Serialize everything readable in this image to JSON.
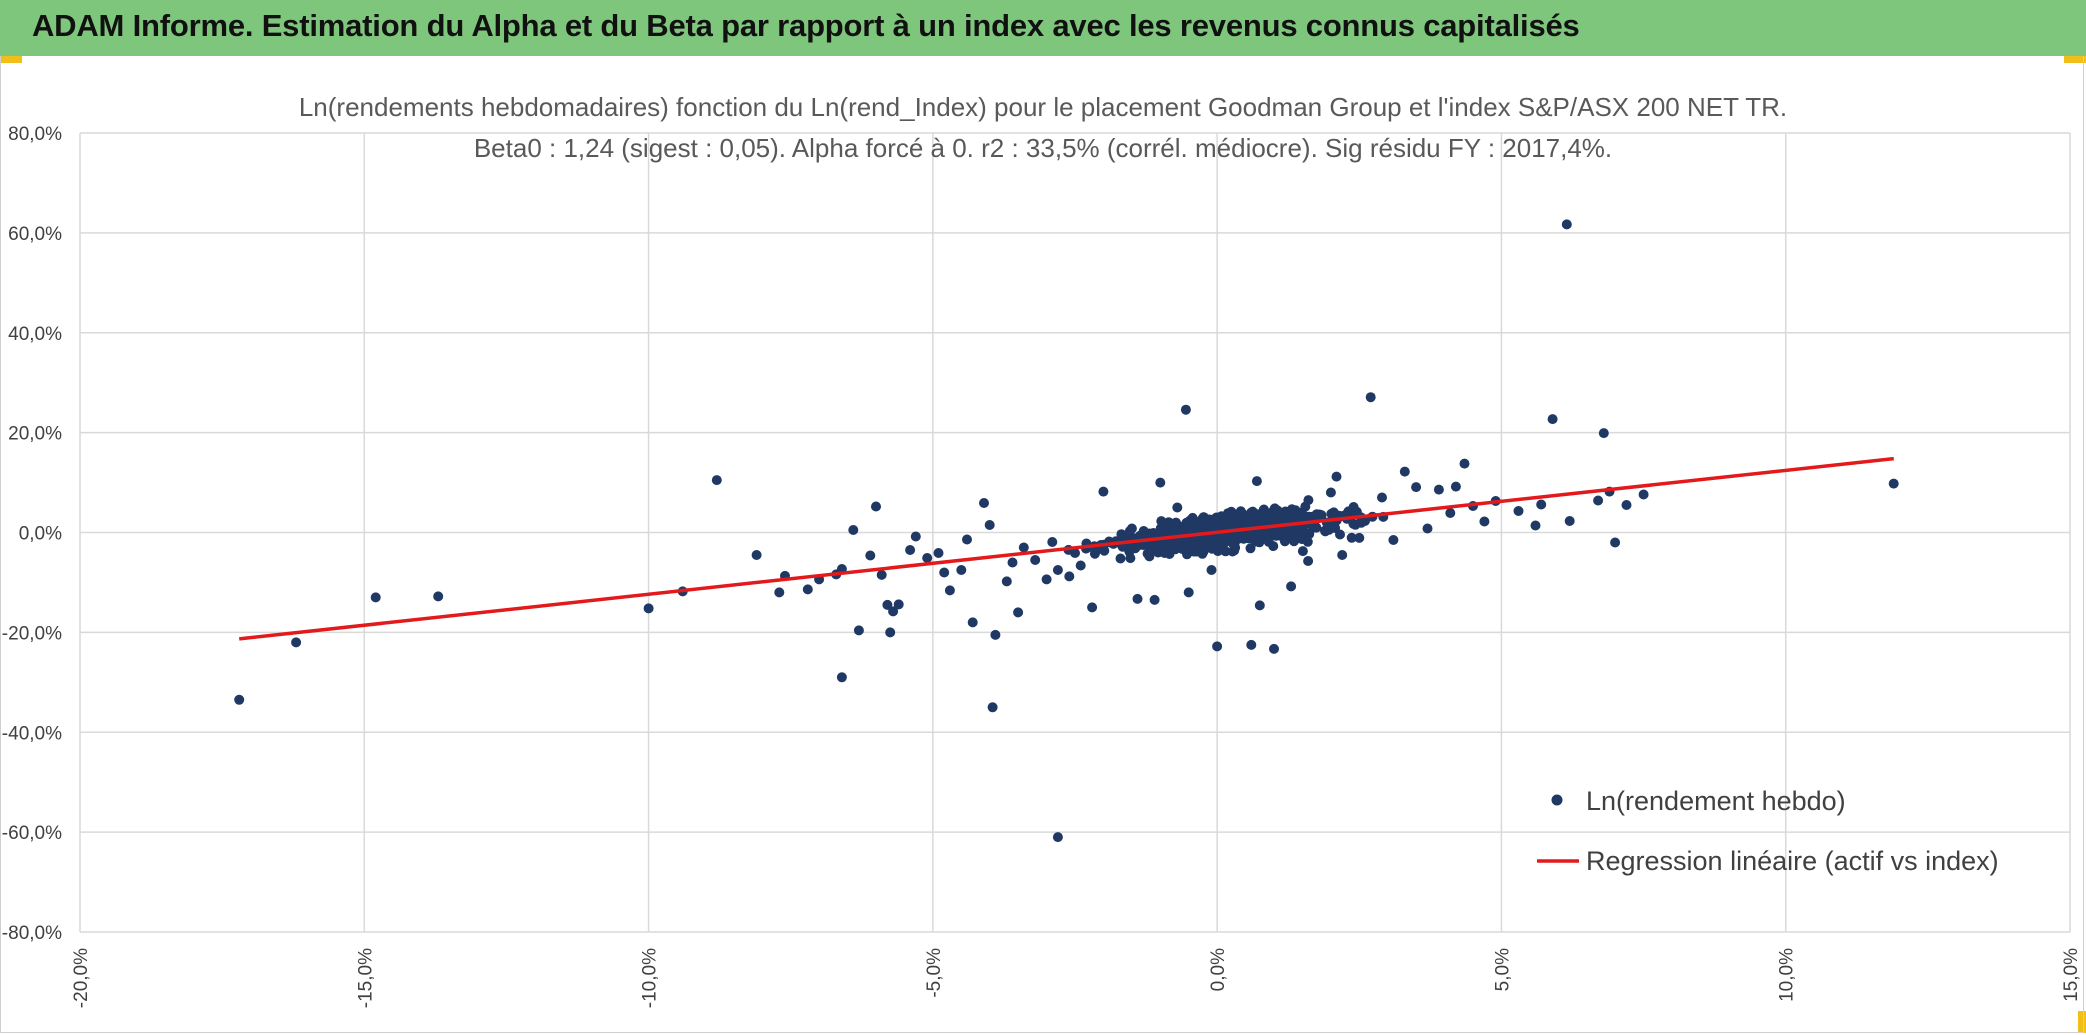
{
  "header": {
    "title": "ADAM Informe. Estimation du Alpha et du Beta par rapport à un index avec les revenus connus capitalisés"
  },
  "colors": {
    "banner": "#7dc67b",
    "accent": "#f2bf1a",
    "points": "#203864",
    "regression": "#e31a1c",
    "grid": "#d9d9d9"
  },
  "chart_data": {
    "type": "scatter",
    "title": "Ln(rendements hebdomadaires) fonction du Ln(rend_Index) pour le placement Goodman Group et l'index S&P/ASX 200 NET TR.",
    "subtitle": "Beta0 : 1,24 (sigest : 0,05). Alpha forcé à 0. r2 : 33,5% (corrél. médiocre). Sig résidu FY : 2017,4%.",
    "xlabel": "",
    "ylabel": "",
    "xlim": [
      -20,
      15
    ],
    "ylim": [
      -80,
      80
    ],
    "x_ticks": [
      "-20,0%",
      "-15,0%",
      "-10,0%",
      "-5,0%",
      "0,0%",
      "5,0%",
      "10,0%",
      "15,0%"
    ],
    "y_ticks": [
      "80,0%",
      "60,0%",
      "40,0%",
      "20,0%",
      "0,0%",
      "-20,0%",
      "-40,0%",
      "-60,0%",
      "-80,0%"
    ],
    "grid": true,
    "legend_position": "bottom-right",
    "series": [
      {
        "name": "Ln(rendement hebdo)",
        "kind": "scatter",
        "points": [
          [
            -17.2,
            -33.5
          ],
          [
            -16.2,
            -22
          ],
          [
            -14.8,
            -13
          ],
          [
            -13.7,
            -12.8
          ],
          [
            -10,
            -15.2
          ],
          [
            -9.4,
            -11.8
          ],
          [
            -8.8,
            10.5
          ],
          [
            -8.1,
            -4.5
          ],
          [
            -7.7,
            -12
          ],
          [
            -7.6,
            -8.7
          ],
          [
            -7.2,
            -11.4
          ],
          [
            -7.0,
            -9.4
          ],
          [
            -6.7,
            -8.4
          ],
          [
            -6.6,
            -7.3
          ],
          [
            -6.6,
            -29
          ],
          [
            -6.3,
            -19.6
          ],
          [
            -6.4,
            0.5
          ],
          [
            -6.1,
            -4.6
          ],
          [
            -6.0,
            5.2
          ],
          [
            -5.9,
            -8.5
          ],
          [
            -5.8,
            -14.5
          ],
          [
            -5.7,
            -15.8
          ],
          [
            -5.75,
            -20
          ],
          [
            -5.6,
            -14.4
          ],
          [
            -5.4,
            -3.5
          ],
          [
            -5.3,
            -0.8
          ],
          [
            -5.1,
            -5.1
          ],
          [
            -4.9,
            -4.1
          ],
          [
            -4.8,
            -8
          ],
          [
            -4.7,
            -11.6
          ],
          [
            -4.5,
            -7.5
          ],
          [
            -4.4,
            -1.4
          ],
          [
            -4.3,
            -18
          ],
          [
            -4.1,
            5.9
          ],
          [
            -4.0,
            1.5
          ],
          [
            -3.9,
            -20.5
          ],
          [
            -3.95,
            -35
          ],
          [
            -3.7,
            -9.8
          ],
          [
            -3.6,
            -6
          ],
          [
            -3.5,
            -16
          ],
          [
            -3.4,
            -3
          ],
          [
            -3.2,
            -5.5
          ],
          [
            -3.0,
            -9.4
          ],
          [
            -2.9,
            -1.9
          ],
          [
            -2.8,
            -7.5
          ],
          [
            -2.8,
            -61
          ],
          [
            -2.6,
            -8.8
          ],
          [
            -2.5,
            -4.1
          ],
          [
            -2.4,
            -6.6
          ],
          [
            -2.3,
            -2.2
          ],
          [
            -2.2,
            -15
          ],
          [
            -2.1,
            -3.4
          ],
          [
            -2.0,
            8.2
          ],
          [
            -1.9,
            -1.8
          ],
          [
            -1.7,
            -5.2
          ],
          [
            -1.5,
            0.8
          ],
          [
            -1.4,
            -13.3
          ],
          [
            -1.3,
            -2.5
          ],
          [
            -1.1,
            -13.5
          ],
          [
            -1.0,
            10
          ],
          [
            -0.9,
            -0.5
          ],
          [
            -0.7,
            5
          ],
          [
            -0.55,
            24.6
          ],
          [
            -0.5,
            -12
          ],
          [
            -0.3,
            0.2
          ],
          [
            -0.1,
            -7.5
          ],
          [
            0.0,
            -22.8
          ],
          [
            0.2,
            1.8
          ],
          [
            0.3,
            -3.6
          ],
          [
            0.5,
            2.5
          ],
          [
            0.6,
            -22.5
          ],
          [
            0.7,
            10.3
          ],
          [
            0.75,
            -14.6
          ],
          [
            0.9,
            -1.5
          ],
          [
            1.0,
            -23.3
          ],
          [
            1.2,
            4.2
          ],
          [
            1.3,
            -10.8
          ],
          [
            1.5,
            1.2
          ],
          [
            1.6,
            -5.7
          ],
          [
            1.8,
            3.6
          ],
          [
            2.0,
            8
          ],
          [
            2.1,
            11.2
          ],
          [
            2.2,
            -4.5
          ],
          [
            2.4,
            5.1
          ],
          [
            2.6,
            2.3
          ],
          [
            2.7,
            27.1
          ],
          [
            2.9,
            7
          ],
          [
            3.1,
            -1.5
          ],
          [
            3.3,
            12.2
          ],
          [
            3.5,
            9.1
          ],
          [
            3.7,
            0.8
          ],
          [
            3.9,
            8.6
          ],
          [
            4.1,
            3.9
          ],
          [
            4.2,
            9.2
          ],
          [
            4.35,
            13.8
          ],
          [
            4.5,
            5.3
          ],
          [
            4.7,
            2.2
          ],
          [
            4.9,
            6.3
          ],
          [
            5.3,
            4.3
          ],
          [
            5.6,
            1.4
          ],
          [
            5.7,
            5.6
          ],
          [
            5.9,
            22.7
          ],
          [
            6.15,
            61.7
          ],
          [
            6.2,
            2.3
          ],
          [
            6.7,
            6.4
          ],
          [
            6.8,
            19.9
          ],
          [
            6.9,
            8.2
          ],
          [
            7.0,
            -2
          ],
          [
            7.2,
            5.5
          ],
          [
            7.5,
            7.6
          ],
          [
            11.9,
            9.8
          ]
        ]
      },
      {
        "name": "Regression linéaire (actif vs index)",
        "kind": "line",
        "x": [
          -17.2,
          11.9
        ],
        "y": [
          -21.3,
          14.8
        ]
      }
    ]
  }
}
